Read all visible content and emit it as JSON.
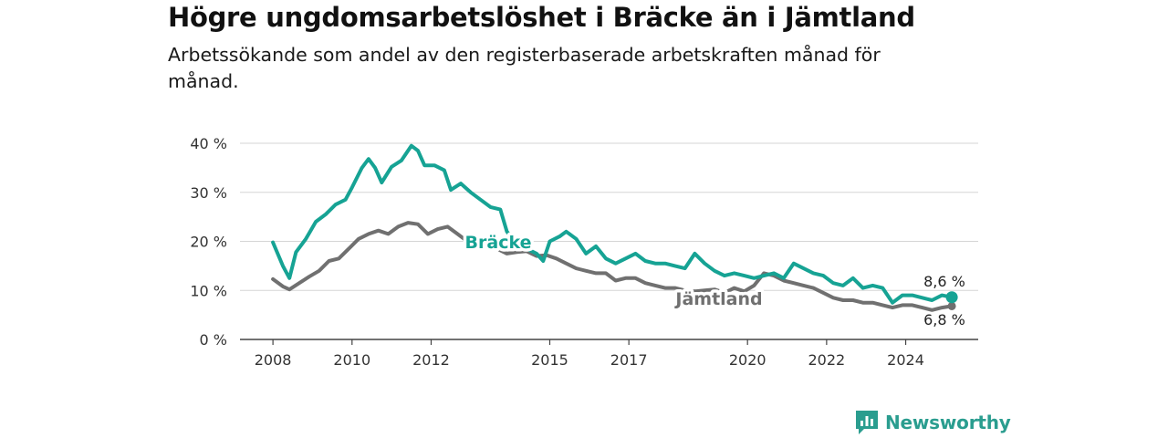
{
  "header": {
    "title": "Högre ungdomsarbetslöshet i Bräcke än i Jämtland",
    "subtitle": "Arbetssökande som andel av den registerbaserade arbetskraften månad för månad."
  },
  "brand": {
    "name": "Newsworthy",
    "color": "#2a9d8f",
    "icon": "bar-chart-speech-icon"
  },
  "chart_data": {
    "type": "line",
    "title": "Högre ungdomsarbetslöshet i Bräcke än i Jämtland",
    "subtitle": "Arbetssökande som andel av den registerbaserade arbetskraften månad för månad.",
    "xlabel": "",
    "ylabel": "",
    "x_ticks": [
      "2008",
      "2010",
      "2012",
      "2015",
      "2017",
      "2020",
      "2022",
      "2024"
    ],
    "y_ticks": [
      "0 %",
      "10 %",
      "20 %",
      "30 %",
      "40 %"
    ],
    "ylim": [
      0,
      40
    ],
    "xlim": [
      "2008-01",
      "2025-06"
    ],
    "grid": true,
    "legend": "direct labels on lines",
    "series": [
      {
        "name": "Bräcke",
        "color": "#16a394",
        "label_position": "mid-line",
        "end_label": "8,6 %",
        "points": [
          [
            "2008-01",
            19.8
          ],
          [
            "2008-04",
            15.0
          ],
          [
            "2008-06",
            12.5
          ],
          [
            "2008-08",
            17.8
          ],
          [
            "2008-11",
            20.5
          ],
          [
            "2009-02",
            24.0
          ],
          [
            "2009-05",
            25.5
          ],
          [
            "2009-08",
            27.5
          ],
          [
            "2009-11",
            28.5
          ],
          [
            "2010-01",
            31.0
          ],
          [
            "2010-04",
            35.0
          ],
          [
            "2010-06",
            36.8
          ],
          [
            "2010-08",
            35.0
          ],
          [
            "2010-10",
            32.0
          ],
          [
            "2011-01",
            35.2
          ],
          [
            "2011-04",
            36.5
          ],
          [
            "2011-07",
            39.5
          ],
          [
            "2011-09",
            38.5
          ],
          [
            "2011-11",
            35.5
          ],
          [
            "2012-02",
            35.5
          ],
          [
            "2012-05",
            34.5
          ],
          [
            "2012-07",
            30.5
          ],
          [
            "2012-10",
            31.8
          ],
          [
            "2013-01",
            30.0
          ],
          [
            "2013-04",
            28.5
          ],
          [
            "2013-07",
            27.0
          ],
          [
            "2013-10",
            26.5
          ],
          [
            "2013-12",
            22.0
          ],
          [
            "2014-03",
            19.5
          ],
          [
            "2014-06",
            18.5
          ],
          [
            "2014-09",
            17.5
          ],
          [
            "2014-11",
            16.0
          ],
          [
            "2015-01",
            20.0
          ],
          [
            "2015-04",
            21.0
          ],
          [
            "2015-06",
            22.0
          ],
          [
            "2015-09",
            20.5
          ],
          [
            "2015-12",
            17.5
          ],
          [
            "2016-03",
            19.0
          ],
          [
            "2016-06",
            16.5
          ],
          [
            "2016-09",
            15.5
          ],
          [
            "2016-12",
            16.5
          ],
          [
            "2017-03",
            17.5
          ],
          [
            "2017-06",
            16.0
          ],
          [
            "2017-09",
            15.5
          ],
          [
            "2017-12",
            15.5
          ],
          [
            "2018-03",
            15.0
          ],
          [
            "2018-06",
            14.5
          ],
          [
            "2018-09",
            17.5
          ],
          [
            "2018-12",
            15.5
          ],
          [
            "2019-03",
            14.0
          ],
          [
            "2019-06",
            13.0
          ],
          [
            "2019-09",
            13.5
          ],
          [
            "2019-12",
            13.0
          ],
          [
            "2020-03",
            12.5
          ],
          [
            "2020-06",
            13.0
          ],
          [
            "2020-09",
            13.5
          ],
          [
            "2020-12",
            12.5
          ],
          [
            "2021-03",
            15.5
          ],
          [
            "2021-06",
            14.5
          ],
          [
            "2021-09",
            13.5
          ],
          [
            "2021-12",
            13.0
          ],
          [
            "2022-03",
            11.5
          ],
          [
            "2022-06",
            11.0
          ],
          [
            "2022-09",
            12.5
          ],
          [
            "2022-12",
            10.5
          ],
          [
            "2023-03",
            11.0
          ],
          [
            "2023-06",
            10.5
          ],
          [
            "2023-09",
            7.5
          ],
          [
            "2023-12",
            9.0
          ],
          [
            "2024-03",
            9.0
          ],
          [
            "2024-06",
            8.5
          ],
          [
            "2024-09",
            8.0
          ],
          [
            "2024-12",
            9.0
          ],
          [
            "2025-03",
            8.6
          ]
        ]
      },
      {
        "name": "Jämtland",
        "color": "#707070",
        "label_position": "mid-line",
        "end_label": "6,8 %",
        "points": [
          [
            "2008-01",
            12.3
          ],
          [
            "2008-04",
            10.8
          ],
          [
            "2008-06",
            10.2
          ],
          [
            "2008-09",
            11.5
          ],
          [
            "2008-12",
            12.8
          ],
          [
            "2009-03",
            14.0
          ],
          [
            "2009-06",
            16.0
          ],
          [
            "2009-09",
            16.5
          ],
          [
            "2009-12",
            18.5
          ],
          [
            "2010-03",
            20.5
          ],
          [
            "2010-06",
            21.5
          ],
          [
            "2010-09",
            22.2
          ],
          [
            "2010-12",
            21.5
          ],
          [
            "2011-03",
            23.0
          ],
          [
            "2011-06",
            23.8
          ],
          [
            "2011-09",
            23.5
          ],
          [
            "2011-12",
            21.5
          ],
          [
            "2012-03",
            22.5
          ],
          [
            "2012-06",
            23.0
          ],
          [
            "2012-09",
            21.5
          ],
          [
            "2012-12",
            20.0
          ],
          [
            "2013-03",
            20.5
          ],
          [
            "2013-06",
            19.5
          ],
          [
            "2013-09",
            18.5
          ],
          [
            "2013-12",
            17.5
          ],
          [
            "2014-03",
            17.8
          ],
          [
            "2014-06",
            18.0
          ],
          [
            "2014-09",
            17.0
          ],
          [
            "2014-12",
            17.2
          ],
          [
            "2015-03",
            16.5
          ],
          [
            "2015-06",
            15.5
          ],
          [
            "2015-09",
            14.5
          ],
          [
            "2015-12",
            14.0
          ],
          [
            "2016-03",
            13.5
          ],
          [
            "2016-06",
            13.5
          ],
          [
            "2016-09",
            12.0
          ],
          [
            "2016-12",
            12.5
          ],
          [
            "2017-03",
            12.5
          ],
          [
            "2017-06",
            11.5
          ],
          [
            "2017-09",
            11.0
          ],
          [
            "2017-12",
            10.5
          ],
          [
            "2018-03",
            10.5
          ],
          [
            "2018-06",
            10.0
          ],
          [
            "2018-09",
            9.8
          ],
          [
            "2018-12",
            10.0
          ],
          [
            "2019-03",
            10.2
          ],
          [
            "2019-06",
            9.5
          ],
          [
            "2019-09",
            10.5
          ],
          [
            "2019-12",
            9.8
          ],
          [
            "2020-03",
            11.0
          ],
          [
            "2020-06",
            13.5
          ],
          [
            "2020-09",
            13.0
          ],
          [
            "2020-12",
            12.0
          ],
          [
            "2021-03",
            11.5
          ],
          [
            "2021-06",
            11.0
          ],
          [
            "2021-09",
            10.5
          ],
          [
            "2021-12",
            9.5
          ],
          [
            "2022-03",
            8.5
          ],
          [
            "2022-06",
            8.0
          ],
          [
            "2022-09",
            8.0
          ],
          [
            "2022-12",
            7.5
          ],
          [
            "2023-03",
            7.5
          ],
          [
            "2023-06",
            7.0
          ],
          [
            "2023-09",
            6.5
          ],
          [
            "2023-12",
            7.0
          ],
          [
            "2024-03",
            7.0
          ],
          [
            "2024-06",
            6.5
          ],
          [
            "2024-09",
            6.0
          ],
          [
            "2024-12",
            6.5
          ],
          [
            "2025-03",
            6.8
          ]
        ]
      }
    ]
  }
}
